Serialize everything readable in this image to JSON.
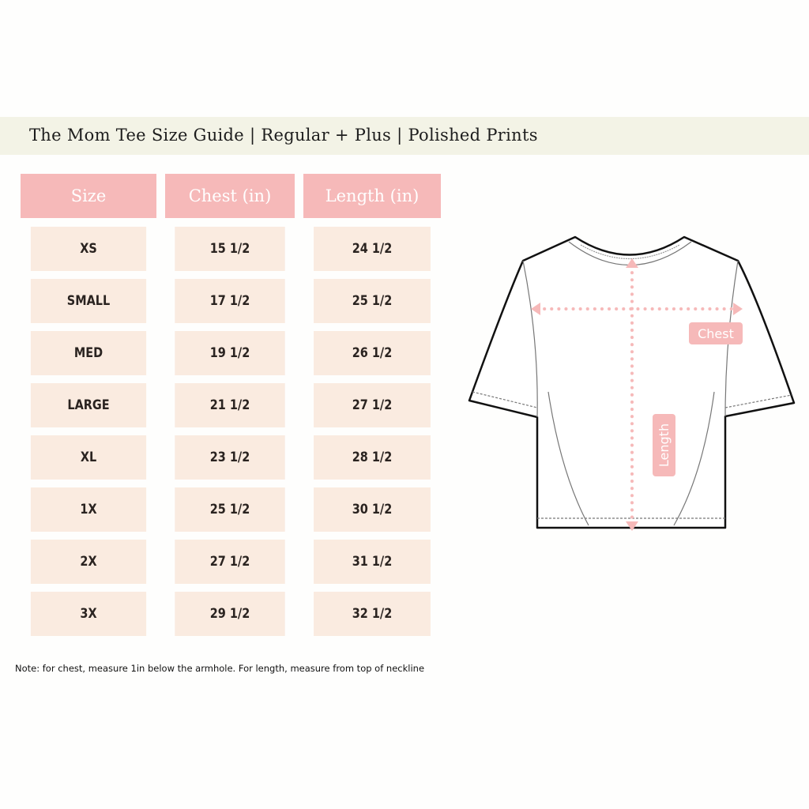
{
  "title": "The Mom Tee Size Guide | Regular + Plus | Polished Prints",
  "table": {
    "headers": [
      "Size",
      "Chest (in)",
      "Length (in)"
    ],
    "rows": [
      [
        "XS",
        "15 1/2",
        "24 1/2"
      ],
      [
        "SMALL",
        "17 1/2",
        "25 1/2"
      ],
      [
        "MED",
        "19 1/2",
        "26 1/2"
      ],
      [
        "LARGE",
        "21 1/2",
        "27 1/2"
      ],
      [
        "XL",
        "23 1/2",
        "28 1/2"
      ],
      [
        "1X",
        "25 1/2",
        "30 1/2"
      ],
      [
        "2X",
        "27 1/2",
        "31 1/2"
      ],
      [
        "3X",
        "29 1/2",
        "32 1/2"
      ]
    ]
  },
  "diagram": {
    "chest_label": "Chest",
    "length_label": "Length"
  },
  "note": "Note: for chest, measure 1in below the armhole. For length, measure from top of neckline",
  "colors": {
    "header_bg": "#f6b9b9",
    "cell_bg": "#faebe0",
    "banner_bg": "#f3f3e6",
    "accent": "#f6b9b9"
  }
}
